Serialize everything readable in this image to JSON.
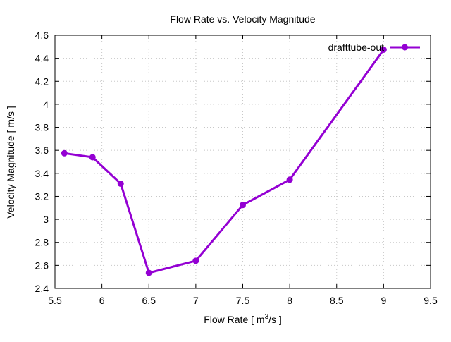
{
  "chart_data": {
    "type": "line",
    "title": "Flow Rate vs. Velocity Magnitude",
    "xlabel": "Flow Rate [ m",
    "xlabel_sup": "3",
    "xlabel_tail": "/s ]",
    "ylabel": "Velocity Magnitude [ m/s ]",
    "xlim": [
      5.5,
      9.5
    ],
    "ylim": [
      2.4,
      4.6
    ],
    "xticks": [
      5.5,
      6,
      6.5,
      7,
      7.5,
      8,
      8.5,
      9,
      9.5
    ],
    "xtick_labels": [
      "5.5",
      "6",
      "6.5",
      "7",
      "7.5",
      "8",
      "8.5",
      "9",
      "9.5"
    ],
    "yticks": [
      2.4,
      2.6,
      2.8,
      3.0,
      3.2,
      3.4,
      3.6,
      3.8,
      4.0,
      4.2,
      4.4,
      4.6
    ],
    "ytick_labels": [
      "2.4",
      "2.6",
      "2.8",
      "3",
      "3.2",
      "3.4",
      "3.6",
      "3.8",
      "4",
      "4.2",
      "4.4",
      "4.6"
    ],
    "grid": true,
    "legend_position": "top-right",
    "series": [
      {
        "name": "drafttube-out",
        "color": "#9400d3",
        "x": [
          5.6,
          5.9,
          6.2,
          6.5,
          7.0,
          7.5,
          8.0,
          9.0
        ],
        "y": [
          3.575,
          3.54,
          3.31,
          2.535,
          2.64,
          3.125,
          3.345,
          4.475
        ]
      }
    ]
  }
}
